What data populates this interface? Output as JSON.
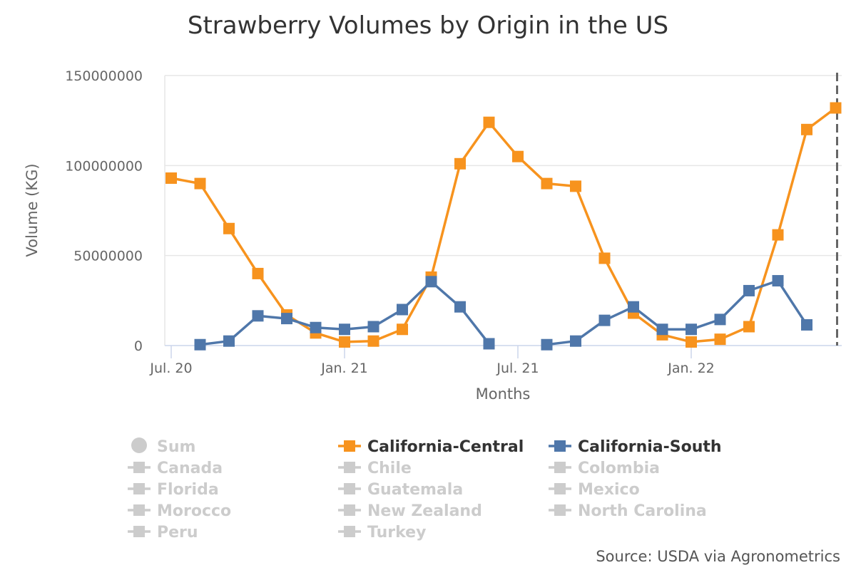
{
  "chart_data": {
    "type": "line",
    "title": "Strawberry Volumes by Origin in the US",
    "xlabel": "Months",
    "ylabel": "Volume (KG)",
    "ylim": [
      0,
      150000000
    ],
    "yticks": [
      "0",
      "50000000",
      "100000000",
      "150000000"
    ],
    "ytick_values": [
      0,
      50000000,
      100000000,
      150000000
    ],
    "x": [
      "Jul 20",
      "Aug 20",
      "Sep 20",
      "Oct 20",
      "Nov 20",
      "Dec 20",
      "Jan 21",
      "Feb 21",
      "Mar 21",
      "Apr 21",
      "May 21",
      "Jun 21",
      "Jul 21",
      "Aug 21",
      "Sep 21",
      "Oct 21",
      "Nov 21",
      "Dec 21",
      "Jan 22",
      "Feb 22",
      "Mar 22",
      "Apr 22",
      "May 22",
      "Jun 22"
    ],
    "xtick_labels": [
      {
        "label": "Jul. 20",
        "index": 0
      },
      {
        "label": "Jan. 21",
        "index": 6
      },
      {
        "label": "Jul. 21",
        "index": 12
      },
      {
        "label": "Jan. 22",
        "index": 18
      }
    ],
    "series": [
      {
        "name": "California-Central",
        "color": "#f7931e",
        "values": [
          93000000,
          90000000,
          65000000,
          40000000,
          17000000,
          7000000,
          2000000,
          2500000,
          9000000,
          38000000,
          101000000,
          124000000,
          105000000,
          90000000,
          88500000,
          48500000,
          18000000,
          6000000,
          2000000,
          3500000,
          10500000,
          61500000,
          120000000,
          132000000
        ]
      },
      {
        "name": "California-South",
        "color": "#4f77aa",
        "values": [
          null,
          500000,
          2500000,
          16500000,
          15000000,
          10000000,
          9000000,
          10500000,
          20000000,
          35500000,
          21500000,
          1000000,
          null,
          500000,
          2500000,
          14000000,
          21500000,
          9000000,
          9000000,
          14500000,
          30500000,
          36000000,
          11500000,
          null
        ]
      }
    ],
    "legend": {
      "position": "bottom",
      "items": [
        {
          "label": "Sum",
          "active": false,
          "marker": "circle"
        },
        {
          "label": "California-Central",
          "active": true,
          "marker": "square",
          "series": 0
        },
        {
          "label": "California-South",
          "active": true,
          "marker": "square",
          "series": 1
        },
        {
          "label": "Canada",
          "active": false,
          "marker": "square"
        },
        {
          "label": "Chile",
          "active": false,
          "marker": "square"
        },
        {
          "label": "Colombia",
          "active": false,
          "marker": "square"
        },
        {
          "label": "Florida",
          "active": false,
          "marker": "square"
        },
        {
          "label": "Guatemala",
          "active": false,
          "marker": "square"
        },
        {
          "label": "Mexico",
          "active": false,
          "marker": "square"
        },
        {
          "label": "Morocco",
          "active": false,
          "marker": "square"
        },
        {
          "label": "New Zealand",
          "active": false,
          "marker": "square"
        },
        {
          "label": "North Carolina",
          "active": false,
          "marker": "square"
        },
        {
          "label": "Peru",
          "active": false,
          "marker": "square"
        },
        {
          "label": "Turkey",
          "active": false,
          "marker": "square"
        }
      ]
    },
    "source": "Source: USDA via Agronometrics",
    "inactive_color": "#cccccc",
    "grid_color": "#e6e6e6",
    "axis_color": "#ccd6eb",
    "marker_line_color": "#666666"
  }
}
